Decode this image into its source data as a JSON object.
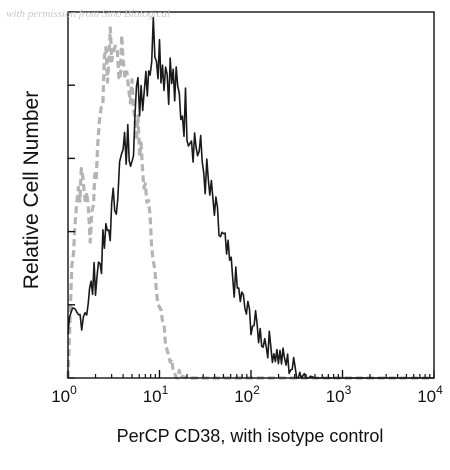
{
  "watermark": "with permission from Sino Biological",
  "chart_data": {
    "type": "line",
    "title": "",
    "xlabel": "PerCP CD38, with isotype control",
    "ylabel": "Relative Cell Number",
    "x_scale": "log",
    "xlim": [
      1,
      10000
    ],
    "ylim": [
      0,
      1
    ],
    "x_ticks": [
      {
        "value": 1,
        "base": "10",
        "exp": "0"
      },
      {
        "value": 10,
        "base": "10",
        "exp": "1"
      },
      {
        "value": 100,
        "base": "10",
        "exp": "2"
      },
      {
        "value": 1000,
        "base": "10",
        "exp": "3"
      },
      {
        "value": 10000,
        "base": "10",
        "exp": "4"
      }
    ],
    "y_ticks": [
      0,
      0.2,
      0.4,
      0.6,
      0.8,
      1.0
    ],
    "grid": false,
    "legend": "none",
    "series": [
      {
        "style": "dashed",
        "color": "#b4b4b4",
        "points": [
          [
            1.0,
            0.0
          ],
          [
            1.1,
            0.3
          ],
          [
            1.2,
            0.45
          ],
          [
            1.3,
            0.52
          ],
          [
            1.45,
            0.54
          ],
          [
            1.6,
            0.48
          ],
          [
            1.75,
            0.41
          ],
          [
            1.9,
            0.5
          ],
          [
            2.1,
            0.62
          ],
          [
            2.3,
            0.78
          ],
          [
            2.5,
            0.82
          ],
          [
            2.7,
            0.86
          ],
          [
            3.0,
            0.91
          ],
          [
            3.3,
            0.9
          ],
          [
            3.6,
            0.85
          ],
          [
            4.0,
            0.88
          ],
          [
            4.4,
            0.83
          ],
          [
            5.0,
            0.78
          ],
          [
            5.6,
            0.7
          ],
          [
            6.3,
            0.6
          ],
          [
            7.0,
            0.52
          ],
          [
            7.9,
            0.43
          ],
          [
            8.9,
            0.3
          ],
          [
            10.0,
            0.2
          ],
          [
            11.2,
            0.12
          ],
          [
            12.6,
            0.06
          ],
          [
            14.1,
            0.02
          ],
          [
            15.8,
            0.01
          ],
          [
            20.0,
            0.0
          ],
          [
            31.6,
            0.0
          ],
          [
            63.1,
            0.0
          ],
          [
            100.0,
            0.0
          ],
          [
            1000.0,
            0.0
          ],
          [
            10000.0,
            0.0
          ]
        ]
      },
      {
        "style": "solid",
        "color": "#1a1a1a",
        "points": [
          [
            1.0,
            0.14
          ],
          [
            1.3,
            0.16
          ],
          [
            1.6,
            0.2
          ],
          [
            2.0,
            0.28
          ],
          [
            2.5,
            0.36
          ],
          [
            3.0,
            0.44
          ],
          [
            3.5,
            0.54
          ],
          [
            4.0,
            0.6
          ],
          [
            4.5,
            0.64
          ],
          [
            5.0,
            0.66
          ],
          [
            5.6,
            0.74
          ],
          [
            6.3,
            0.8
          ],
          [
            7.1,
            0.84
          ],
          [
            7.9,
            0.88
          ],
          [
            8.9,
            0.95
          ],
          [
            10.0,
            0.9
          ],
          [
            11.2,
            0.86
          ],
          [
            12.6,
            0.84
          ],
          [
            14.1,
            0.8
          ],
          [
            15.8,
            0.76
          ],
          [
            17.8,
            0.74
          ],
          [
            20.0,
            0.72
          ],
          [
            22.4,
            0.68
          ],
          [
            25.1,
            0.64
          ],
          [
            28.2,
            0.6
          ],
          [
            31.6,
            0.56
          ],
          [
            35.5,
            0.5
          ],
          [
            39.8,
            0.45
          ],
          [
            44.7,
            0.4
          ],
          [
            50.1,
            0.36
          ],
          [
            56.2,
            0.32
          ],
          [
            63.1,
            0.28
          ],
          [
            70.8,
            0.24
          ],
          [
            79.4,
            0.21
          ],
          [
            89.1,
            0.18
          ],
          [
            100.0,
            0.16
          ],
          [
            125.9,
            0.12
          ],
          [
            158.5,
            0.09
          ],
          [
            199.5,
            0.06
          ],
          [
            251.2,
            0.04
          ],
          [
            316.2,
            0.02
          ],
          [
            398.1,
            0.01
          ],
          [
            501.2,
            0.0
          ],
          [
            1000.0,
            0.0
          ],
          [
            10000.0,
            0.0
          ]
        ]
      }
    ]
  }
}
